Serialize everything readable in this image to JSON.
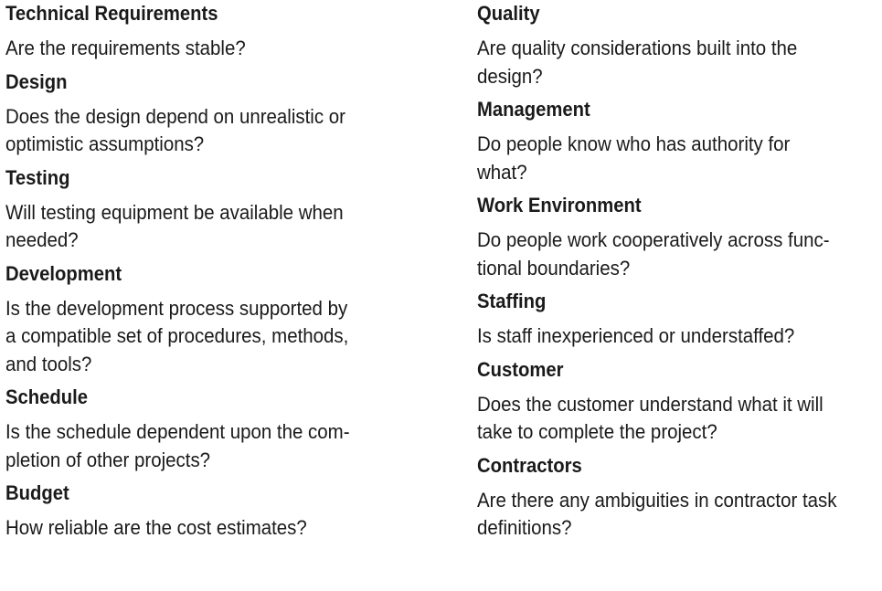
{
  "left_column": [
    {
      "heading": "Technical Requirements",
      "question": "Are the requirements stable?"
    },
    {
      "heading": "Design",
      "question": "Does the design depend on unrealistic or\noptimistic assumptions?"
    },
    {
      "heading": "Testing",
      "question": "Will testing equipment be available when\nneeded?"
    },
    {
      "heading": "Development",
      "question": "Is the development process supported by\na compatible set of procedures, methods,\nand tools?"
    },
    {
      "heading": "Schedule",
      "question": "Is the schedule dependent upon the com-\npletion of other projects?"
    },
    {
      "heading": "Budget",
      "question": "How reliable are the cost estimates?"
    }
  ],
  "right_column": [
    {
      "heading": "Quality",
      "question": "Are quality considerations built into the\ndesign?"
    },
    {
      "heading": "Management",
      "question": "Do people know who has authority for\nwhat?"
    },
    {
      "heading": "Work Environment",
      "question": "Do people work cooperatively across func-\ntional boundaries?"
    },
    {
      "heading": "Staffing",
      "question": "Is staff inexperienced or understaffed?"
    },
    {
      "heading": "Customer",
      "question": "Does the customer understand what it will\ntake to complete the project?"
    },
    {
      "heading": "Contractors",
      "question": "Are there any ambiguities in contractor task\ndefinitions?"
    }
  ]
}
